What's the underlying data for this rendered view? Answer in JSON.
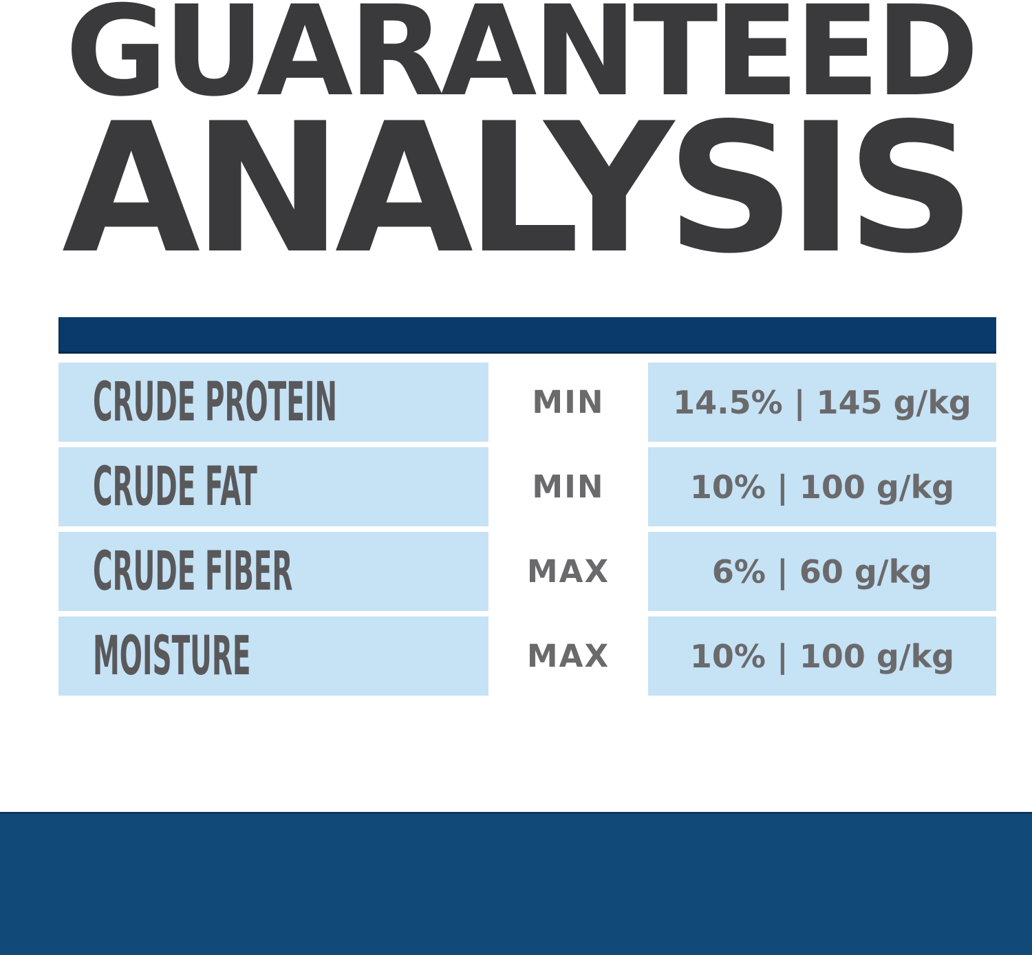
{
  "title": {
    "line1": "GUARANTEED",
    "line2": "ANALYSIS"
  },
  "table": {
    "rows": [
      {
        "nutrient": "CRUDE PROTEIN",
        "qualifier": "MIN",
        "value": "14.5% | 145 g/kg"
      },
      {
        "nutrient": "CRUDE FAT",
        "qualifier": "MIN",
        "value": "10% | 100 g/kg"
      },
      {
        "nutrient": "CRUDE FIBER",
        "qualifier": "MAX",
        "value": "6% | 60 g/kg"
      },
      {
        "nutrient": "MOISTURE",
        "qualifier": "MAX",
        "value": "10% | 100 g/kg"
      }
    ]
  },
  "colors": {
    "title-color": "#3a3a3c",
    "navy-header": "#0a3a6b",
    "navy-footer": "#114a78",
    "cell-blue": "#c6e2f5",
    "label-gray": "#59595b",
    "value-gray": "#6a6a6c"
  }
}
